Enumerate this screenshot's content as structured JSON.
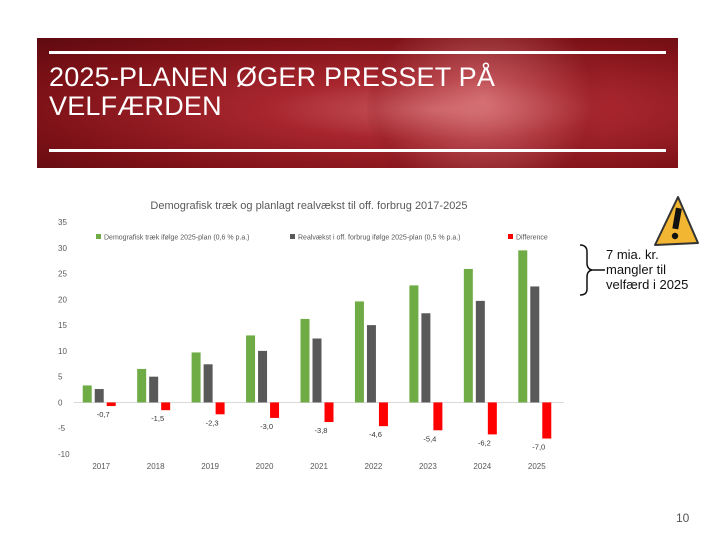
{
  "slide": {
    "title": "2025-PLANEN ØGER PRESSET PÅ VELFÆRDEN",
    "callout": "7 mia. kr. mangler til velfærd i 2025",
    "page_number": "10"
  },
  "chart_data": {
    "type": "bar",
    "title": "Demografisk træk og planlagt realvækst til off. forbrug 2017-2025",
    "categories": [
      "2017",
      "2018",
      "2019",
      "2020",
      "2021",
      "2022",
      "2023",
      "2024",
      "2025"
    ],
    "series": [
      {
        "name": "Demografisk træk ifølge 2025-plan (0,6 % p.a.)",
        "color": "#6fac46",
        "values": [
          3.3,
          6.5,
          9.7,
          13.0,
          16.2,
          19.6,
          22.7,
          25.9,
          29.5
        ]
      },
      {
        "name": "Realvækst i off. forbrug ifølge 2025-plan (0,5 % p.a.)",
        "color": "#595959",
        "values": [
          2.6,
          5.0,
          7.4,
          10.0,
          12.4,
          15.0,
          17.3,
          19.7,
          22.5
        ]
      },
      {
        "name": "Difference",
        "color": "#ff0000",
        "values": [
          -0.7,
          -1.5,
          -2.3,
          -3.0,
          -3.8,
          -4.6,
          -5.4,
          -6.2,
          -7.0
        ],
        "labels": [
          "-0,7",
          "-1,5",
          "-2,3",
          "-3,0",
          "-3,8",
          "-4,6",
          "-5,4",
          "-6,2",
          "-7,0"
        ]
      }
    ],
    "yticks": [
      "35",
      "30",
      "25",
      "20",
      "15",
      "10",
      "5",
      "0",
      "-5",
      "-10"
    ],
    "ylim": [
      -10,
      35
    ],
    "legend_position": "top",
    "grid": false
  }
}
